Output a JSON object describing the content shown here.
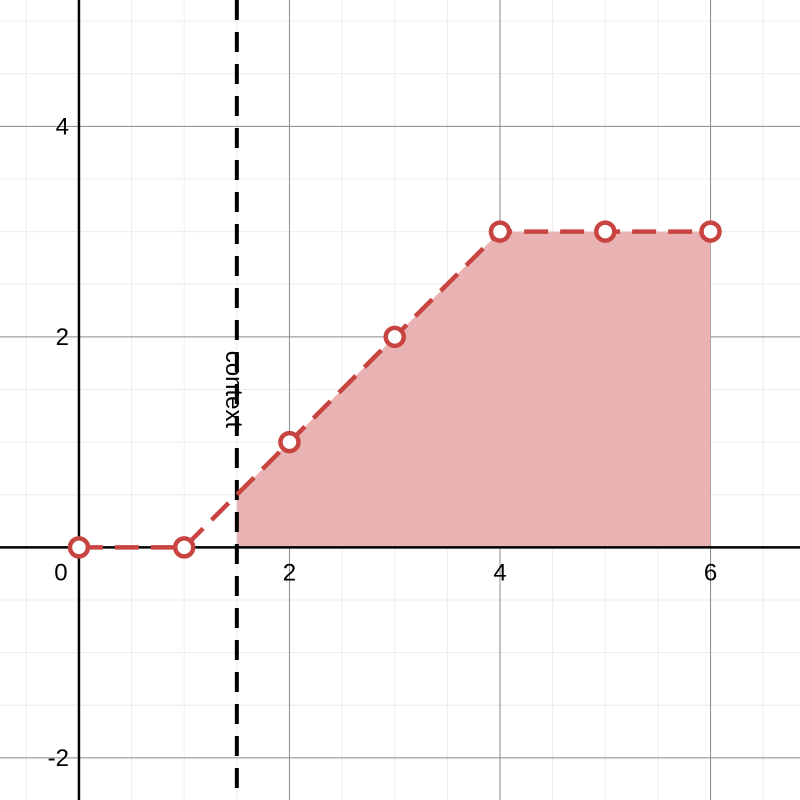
{
  "chart_data": {
    "type": "line",
    "title": "",
    "xlabel": "",
    "ylabel": "",
    "xlim": [
      -0.75,
      6.85
    ],
    "ylim": [
      -2.4,
      5.2
    ],
    "grid": true,
    "x_ticks": [
      {
        "value": 0,
        "label": "0"
      },
      {
        "value": 2,
        "label": "2"
      },
      {
        "value": 4,
        "label": "4"
      },
      {
        "value": 6,
        "label": "6"
      }
    ],
    "y_ticks": [
      {
        "value": -2,
        "label": "-2"
      },
      {
        "value": 2,
        "label": "2"
      },
      {
        "value": 4,
        "label": "4"
      }
    ],
    "series": [
      {
        "x": [
          0,
          1,
          2,
          3,
          4,
          5,
          6
        ],
        "y": [
          0,
          0,
          1,
          2,
          3,
          3,
          3
        ],
        "line_style": "dashed",
        "marker": "open-circle",
        "color": "#c74440"
      }
    ],
    "shaded_region": {
      "from_x": 1.5,
      "to_x": 6,
      "fill_color": "#eab3b3"
    },
    "vertical_line": {
      "x": 1.5,
      "label": "context",
      "line_style": "dashed",
      "color": "#000000"
    }
  }
}
